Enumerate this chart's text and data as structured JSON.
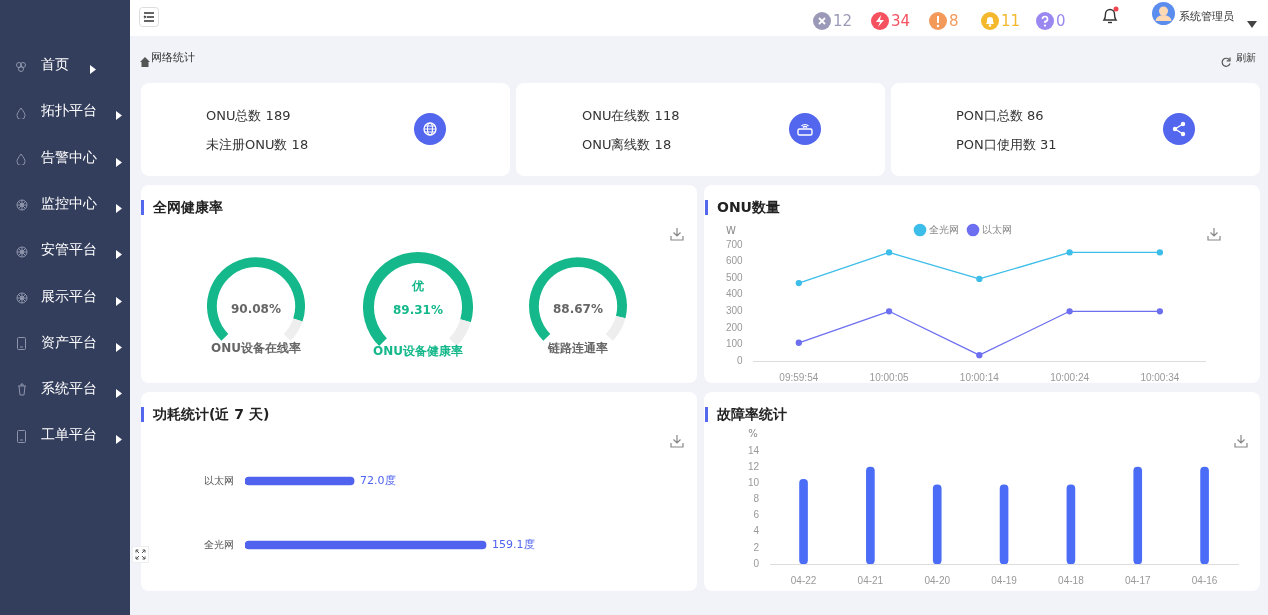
{
  "chart_data": [
    {
      "type": "other",
      "title": "网络统计",
      "annotations": [
        "首页",
        "拓扑平台",
        "告警中心",
        "监控中心",
        "安管平台",
        "展示平台",
        "资产平台",
        "系统平台",
        "工单平台",
        "12",
        "34",
        "8",
        "11",
        "0",
        "系统管理员",
        "刷新",
        "ONU总数 189",
        "未注册ONU数 18",
        "ONU在线数 118",
        "ONU离线数 18",
        "PON口总数 86",
        "PON口使用数 31",
        "全网健康率"
      ]
    },
    {
      "type": "donut",
      "title": "ONU设备在线率",
      "categories": [
        null,
        null
      ],
      "values": [
        90.08,
        9.92
      ],
      "colors": [
        "#14b88a",
        "#eeeeee"
      ],
      "annotations": [
        "90.08%"
      ]
    },
    {
      "type": "donut",
      "title": "ONU设备健康率",
      "categories": [
        null,
        null
      ],
      "values": [
        89.31,
        10.69
      ],
      "colors": [
        "#14b88a",
        "#eeeeee"
      ],
      "annotations": [
        "优",
        "89.31%"
      ]
    },
    {
      "type": "donut",
      "title": "链路连通率",
      "categories": [
        null,
        null
      ],
      "values": [
        88.67,
        11.33
      ],
      "colors": [
        "#14b88a",
        "#eeeeee"
      ],
      "annotations": [
        "88.67%"
      ]
    },
    {
      "type": "line",
      "title": "ONU数量",
      "ylabel": "W",
      "categories": [
        "09:59:54",
        "10:00:05",
        "10:00:14",
        "10:00:24",
        "10:00:34"
      ],
      "ylim": [
        0,
        700
      ],
      "yticks": [
        0,
        100,
        200,
        300,
        400,
        500,
        600,
        700
      ],
      "legend": "top",
      "marker": "circle",
      "series": [
        {
          "name": "全光网",
          "color": "#3dbde9",
          "values": [
            470,
            655,
            495,
            655,
            655
          ]
        },
        {
          "name": "以太网",
          "color": "#6c6ff0",
          "values": [
            110,
            300,
            35,
            300,
            300
          ]
        }
      ]
    },
    {
      "type": "bar",
      "orientation": "horizontal",
      "title": "功耗统计(近 7 天)",
      "categories": [
        "以太网",
        "全光网"
      ],
      "values": [
        72.0,
        159.1
      ],
      "value_labels": [
        "72.0度",
        "159.1度"
      ],
      "color": "#4f63ee",
      "tick_labels": "y"
    },
    {
      "type": "bar",
      "title": "故障率统计",
      "ylabel": "%",
      "categories": [
        "04-22",
        "04-21",
        "04-20",
        "04-19",
        "04-18",
        "04-17",
        "04-16"
      ],
      "values": [
        10.5,
        12,
        9.8,
        9.8,
        9.8,
        12,
        12
      ],
      "color": "#4a6cf6",
      "ylim": [
        0,
        14
      ],
      "yticks": [
        0,
        2,
        4,
        6,
        8,
        10,
        12,
        14
      ]
    }
  ]
}
